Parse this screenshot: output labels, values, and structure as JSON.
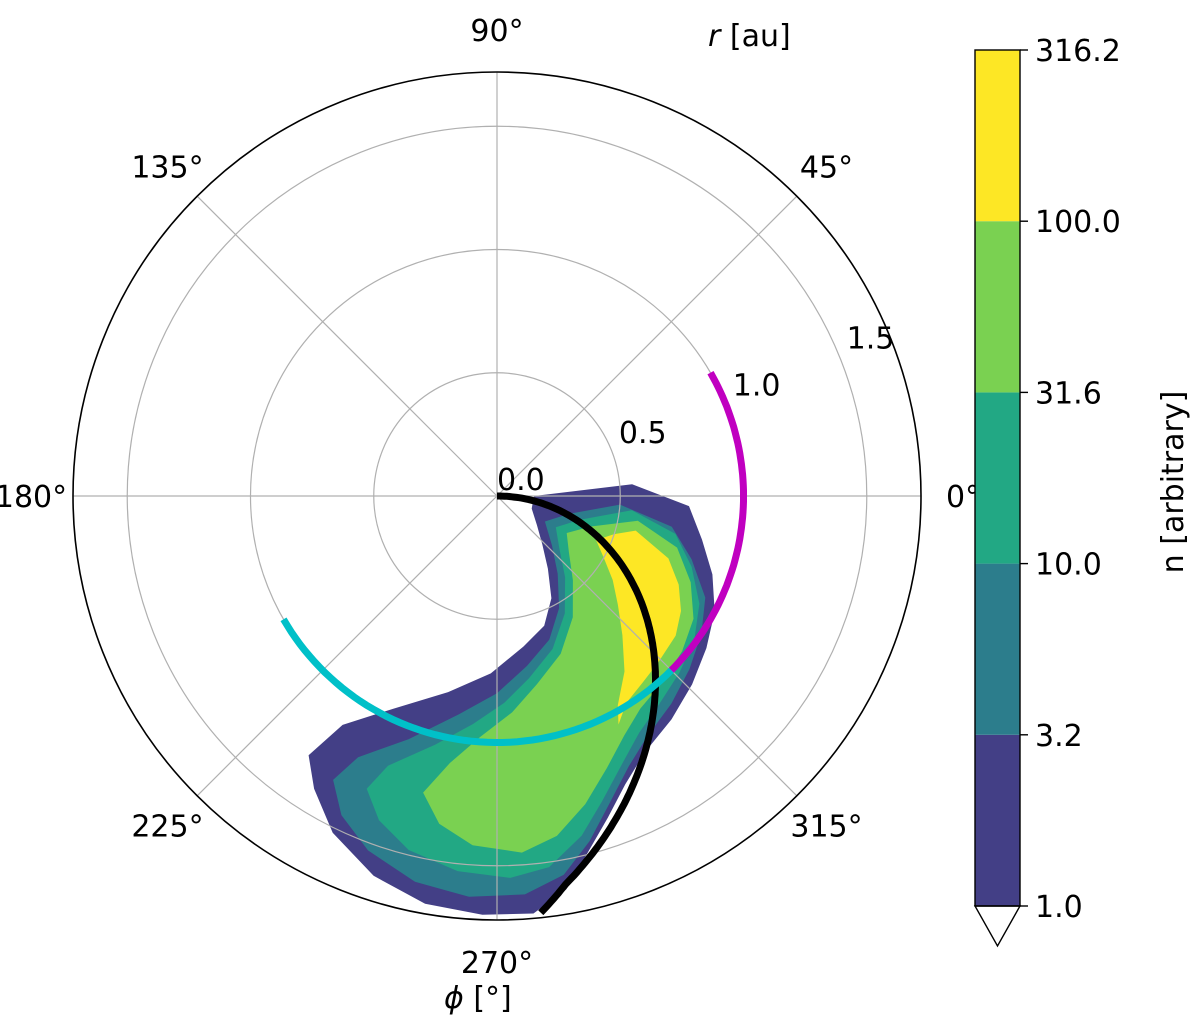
{
  "chart_data": {
    "type": "polar-contour",
    "theta_label_symbol": "ϕ",
    "theta_label_unit": " [°]",
    "r_label_symbol": "r",
    "r_label_unit": " [au]",
    "r_ticks": [
      "0.0",
      "0.5",
      "1.0",
      "1.5"
    ],
    "r_max": 1.72,
    "theta_ticks": [
      "0°",
      "45°",
      "90°",
      "135°",
      "180°",
      "225°",
      "270°",
      "315°"
    ],
    "grid": true,
    "colorbar": {
      "label": "n [arbitrary]",
      "ticks": [
        "1.0",
        "3.2",
        "10.0",
        "31.6",
        "100.0",
        "316.2"
      ],
      "levels": [
        1.0,
        3.2,
        10.0,
        31.6,
        100.0,
        316.2
      ],
      "colors": [
        "#433f86",
        "#2c7d8c",
        "#22a884",
        "#7ad151",
        "#fde725"
      ],
      "extend": "min"
    },
    "density_bands": [
      {
        "level": 1.0,
        "color": "#433f86",
        "points": [
          [
            0,
            0.15
          ],
          [
            5,
            0.55
          ],
          [
            -3,
            0.78
          ],
          [
            -12,
            0.85
          ],
          [
            -20,
            0.93
          ],
          [
            -28,
            1.0
          ],
          [
            -36,
            1.05
          ],
          [
            -44,
            1.1
          ],
          [
            -52,
            1.15
          ],
          [
            -60,
            1.2
          ],
          [
            -66,
            1.28
          ],
          [
            -71,
            1.38
          ],
          [
            -76,
            1.5
          ],
          [
            -80,
            1.62
          ],
          [
            -85,
            1.7
          ],
          [
            -92,
            1.7
          ],
          [
            -100,
            1.68
          ],
          [
            -108,
            1.62
          ],
          [
            -116,
            1.52
          ],
          [
            -122,
            1.4
          ],
          [
            -126,
            1.3
          ],
          [
            -124,
            1.12
          ],
          [
            -116,
            0.96
          ],
          [
            -104,
            0.82
          ],
          [
            -92,
            0.72
          ],
          [
            -80,
            0.62
          ],
          [
            -70,
            0.56
          ],
          [
            -62,
            0.47
          ],
          [
            -55,
            0.36
          ],
          [
            -47,
            0.27
          ],
          [
            -36,
            0.2
          ],
          [
            -20,
            0.15
          ]
        ]
      },
      {
        "level": 3.2,
        "color": "#2c7d8c",
        "points": [
          [
            -4,
            0.5
          ],
          [
            -10,
            0.72
          ],
          [
            -18,
            0.83
          ],
          [
            -26,
            0.94
          ],
          [
            -34,
            1.0
          ],
          [
            -42,
            1.05
          ],
          [
            -50,
            1.1
          ],
          [
            -58,
            1.15
          ],
          [
            -64,
            1.22
          ],
          [
            -70,
            1.33
          ],
          [
            -75,
            1.45
          ],
          [
            -80,
            1.56
          ],
          [
            -86,
            1.62
          ],
          [
            -94,
            1.63
          ],
          [
            -102,
            1.6
          ],
          [
            -110,
            1.53
          ],
          [
            -116,
            1.44
          ],
          [
            -120,
            1.33
          ],
          [
            -118,
            1.2
          ],
          [
            -110,
            1.05
          ],
          [
            -100,
            0.9
          ],
          [
            -90,
            0.8
          ],
          [
            -80,
            0.7
          ],
          [
            -70,
            0.62
          ],
          [
            -61,
            0.52
          ],
          [
            -52,
            0.4
          ],
          [
            -42,
            0.3
          ],
          [
            -28,
            0.22
          ],
          [
            -14,
            0.3
          ]
        ]
      },
      {
        "level": 10.0,
        "color": "#22a884",
        "points": [
          [
            -6,
            0.55
          ],
          [
            -12,
            0.74
          ],
          [
            -20,
            0.84
          ],
          [
            -28,
            0.93
          ],
          [
            -36,
            0.99
          ],
          [
            -44,
            1.03
          ],
          [
            -52,
            1.07
          ],
          [
            -59,
            1.12
          ],
          [
            -65,
            1.2
          ],
          [
            -71,
            1.31
          ],
          [
            -76,
            1.42
          ],
          [
            -82,
            1.52
          ],
          [
            -88,
            1.55
          ],
          [
            -96,
            1.53
          ],
          [
            -104,
            1.48
          ],
          [
            -110,
            1.4
          ],
          [
            -114,
            1.3
          ],
          [
            -112,
            1.18
          ],
          [
            -104,
            1.04
          ],
          [
            -96,
            0.93
          ],
          [
            -88,
            0.84
          ],
          [
            -80,
            0.75
          ],
          [
            -70,
            0.66
          ],
          [
            -60,
            0.55
          ],
          [
            -50,
            0.43
          ],
          [
            -40,
            0.33
          ],
          [
            -28,
            0.27
          ],
          [
            -16,
            0.35
          ]
        ]
      },
      {
        "level": 31.6,
        "color": "#7ad151",
        "points": [
          [
            -10,
            0.58
          ],
          [
            -16,
            0.76
          ],
          [
            -24,
            0.86
          ],
          [
            -32,
            0.94
          ],
          [
            -40,
            0.98
          ],
          [
            -48,
            1.01
          ],
          [
            -56,
            1.04
          ],
          [
            -62,
            1.1
          ],
          [
            -68,
            1.19
          ],
          [
            -74,
            1.3
          ],
          [
            -80,
            1.4
          ],
          [
            -86,
            1.45
          ],
          [
            -94,
            1.42
          ],
          [
            -100,
            1.35
          ],
          [
            -104,
            1.24
          ],
          [
            -100,
            1.1
          ],
          [
            -94,
            0.98
          ],
          [
            -86,
            0.88
          ],
          [
            -78,
            0.78
          ],
          [
            -68,
            0.69
          ],
          [
            -58,
            0.58
          ],
          [
            -48,
            0.46
          ],
          [
            -38,
            0.37
          ],
          [
            -28,
            0.32
          ],
          [
            -18,
            0.4
          ]
        ]
      },
      {
        "level": 100.0,
        "color": "#fde725",
        "points": [
          [
            -14,
            0.58
          ],
          [
            -20,
            0.74
          ],
          [
            -26,
            0.82
          ],
          [
            -32,
            0.88
          ],
          [
            -38,
            0.92
          ],
          [
            -46,
            0.94
          ],
          [
            -52,
            0.96
          ],
          [
            -58,
            0.99
          ],
          [
            -62,
            1.05
          ],
          [
            -60,
            0.98
          ],
          [
            -54,
            0.88
          ],
          [
            -48,
            0.76
          ],
          [
            -42,
            0.66
          ],
          [
            -36,
            0.58
          ],
          [
            -30,
            0.5
          ],
          [
            -24,
            0.44
          ],
          [
            -18,
            0.5
          ]
        ]
      }
    ],
    "curves": [
      {
        "color": "#000000",
        "kind": "spiral",
        "points": [
          [
            0,
            0
          ],
          [
            -5,
            0.1
          ],
          [
            -10,
            0.2
          ],
          [
            -15,
            0.3
          ],
          [
            -20,
            0.4
          ],
          [
            -25,
            0.5
          ],
          [
            -30,
            0.6
          ],
          [
            -35,
            0.7
          ],
          [
            -40,
            0.8
          ],
          [
            -45,
            0.9
          ],
          [
            -50,
            1.0
          ],
          [
            -55,
            1.1
          ],
          [
            -60,
            1.2
          ],
          [
            -65,
            1.3
          ],
          [
            -70,
            1.4
          ],
          [
            -75,
            1.5
          ],
          [
            -80,
            1.6
          ],
          [
            -84,
            1.7
          ]
        ]
      },
      {
        "color": "#c000c0",
        "kind": "arc",
        "r": 1.0,
        "theta_start": -45,
        "theta_end": 30
      },
      {
        "color": "#00c0c8",
        "kind": "arc",
        "r": 1.0,
        "theta_start": -45,
        "theta_end": -150
      }
    ]
  }
}
